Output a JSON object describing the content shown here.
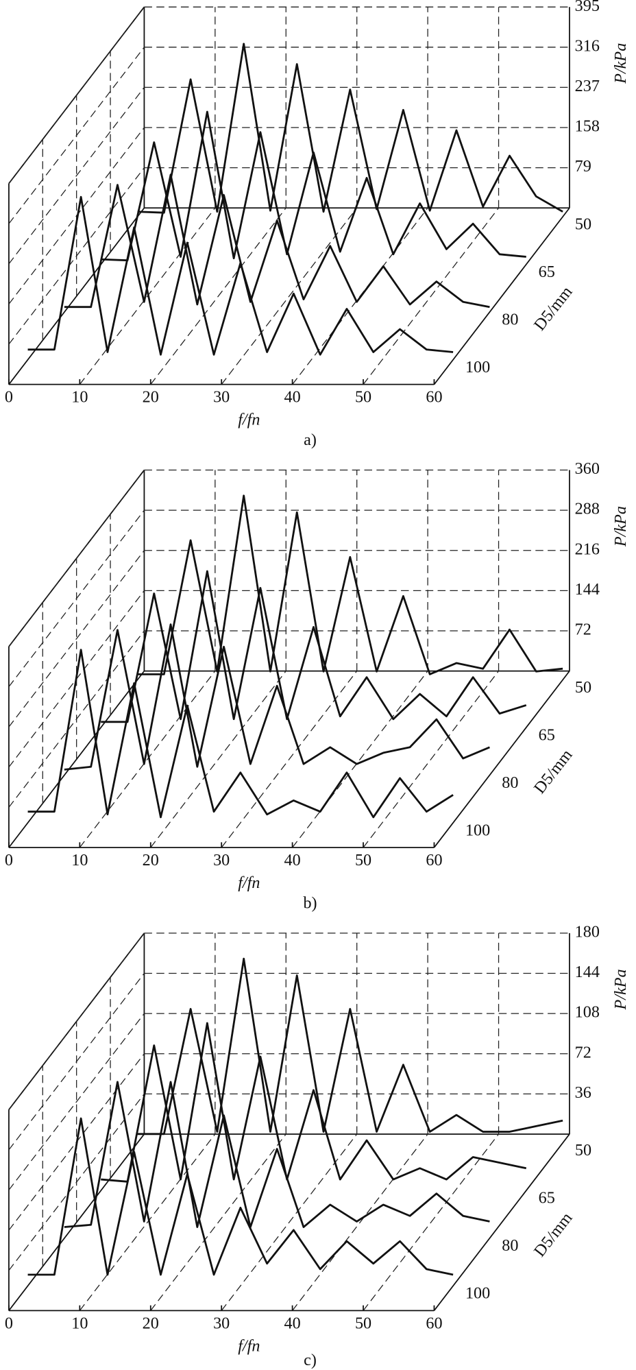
{
  "chart_data": [
    {
      "type": "waterfall",
      "caption": "a)",
      "x_label": "f/fn",
      "y_label": "P/kPa",
      "z_label": "D5/mm",
      "xlim": [
        0,
        60
      ],
      "xticks": [
        0,
        10,
        20,
        30,
        40,
        50,
        60
      ],
      "ylim": [
        0,
        395
      ],
      "yticks": [
        79,
        158,
        237,
        316,
        395
      ],
      "x": [
        0,
        3.75,
        7.5,
        11.25,
        15,
        18.75,
        22.5,
        26.25,
        30,
        33.75,
        37.5,
        41.25,
        45,
        48.75,
        52.5,
        56.25,
        60
      ],
      "series": [
        {
          "name": "50",
          "color": "#111111",
          "values": [
            10,
            8,
            270,
            10,
            340,
            12,
            300,
            10,
            250,
            15,
            210,
            12,
            170,
            20,
            120,
            40,
            10
          ]
        },
        {
          "name": "65",
          "color": "#111111",
          "values": [
            10,
            8,
            240,
            15,
            300,
            12,
            260,
            20,
            220,
            25,
            170,
            20,
            120,
            30,
            80,
            20,
            15
          ]
        },
        {
          "name": "80",
          "color": "#111111",
          "values": [
            10,
            10,
            250,
            20,
            270,
            15,
            230,
            20,
            180,
            25,
            130,
            20,
            90,
            15,
            60,
            20,
            10
          ]
        },
        {
          "name": "100",
          "color": "#111111",
          "values": [
            20,
            20,
            320,
            15,
            260,
            10,
            230,
            10,
            190,
            15,
            130,
            10,
            100,
            15,
            60,
            20,
            15
          ]
        }
      ]
    },
    {
      "type": "waterfall",
      "caption": "b)",
      "x_label": "f/fn",
      "y_label": "P/kPa",
      "z_label": "D5/mm",
      "xlim": [
        0,
        60
      ],
      "xticks": [
        0,
        10,
        20,
        30,
        40,
        50,
        60
      ],
      "ylim": [
        0,
        360
      ],
      "yticks": [
        72,
        144,
        216,
        288,
        360
      ],
      "x": [
        0,
        3.75,
        7.5,
        11.25,
        15,
        18.75,
        22.5,
        26.25,
        30,
        33.75,
        37.5,
        41.25,
        45,
        48.75,
        52.5,
        56.25,
        60
      ],
      "series": [
        {
          "name": "50",
          "color": "#111111",
          "values": [
            10,
            10,
            250,
            15,
            330,
            15,
            300,
            15,
            220,
            15,
            150,
            10,
            30,
            20,
            90,
            15,
            20
          ]
        },
        {
          "name": "65",
          "color": "#111111",
          "values": [
            10,
            10,
            240,
            15,
            280,
            15,
            250,
            15,
            180,
            20,
            90,
            15,
            60,
            20,
            90,
            25,
            40
          ]
        },
        {
          "name": "80",
          "color": "#111111",
          "values": [
            10,
            15,
            260,
            20,
            270,
            15,
            230,
            20,
            160,
            20,
            50,
            20,
            40,
            50,
            100,
            30,
            50
          ]
        },
        {
          "name": "100",
          "color": "#111111",
          "values": [
            20,
            20,
            310,
            15,
            250,
            10,
            210,
            20,
            90,
            15,
            40,
            20,
            90,
            10,
            80,
            20,
            50
          ]
        }
      ]
    },
    {
      "type": "waterfall",
      "caption": "c)",
      "x_label": "f/fn",
      "y_label": "P/kPa",
      "z_label": "D5/mm",
      "xlim": [
        0,
        60
      ],
      "xticks": [
        0,
        10,
        20,
        30,
        40,
        50,
        60
      ],
      "ylim": [
        0,
        180
      ],
      "yticks": [
        36,
        72,
        108,
        144,
        180
      ],
      "x": [
        0,
        3.75,
        7.5,
        11.25,
        15,
        18.75,
        22.5,
        26.25,
        30,
        33.75,
        37.5,
        41.25,
        45,
        48.75,
        52.5,
        56.25,
        60
      ],
      "series": [
        {
          "name": "50",
          "color": "#111111",
          "values": [
            8,
            8,
            120,
            10,
            165,
            10,
            150,
            10,
            120,
            10,
            70,
            10,
            25,
            10,
            10,
            15,
            20
          ]
        },
        {
          "name": "65",
          "color": "#111111",
          "values": [
            10,
            8,
            130,
            10,
            150,
            10,
            120,
            10,
            90,
            10,
            45,
            10,
            20,
            10,
            30,
            25,
            20
          ]
        },
        {
          "name": "80",
          "color": "#111111",
          "values": [
            10,
            12,
            140,
            15,
            140,
            10,
            110,
            10,
            80,
            10,
            30,
            15,
            30,
            20,
            40,
            20,
            15
          ]
        },
        {
          "name": "100",
          "color": "#111111",
          "values": [
            10,
            10,
            150,
            10,
            120,
            10,
            100,
            10,
            70,
            20,
            50,
            15,
            40,
            20,
            40,
            15,
            10
          ]
        }
      ]
    }
  ]
}
